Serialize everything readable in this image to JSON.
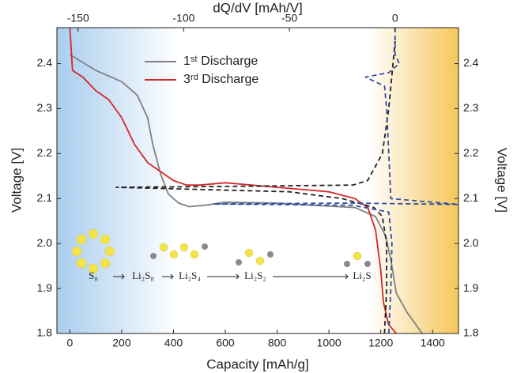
{
  "chart_data": {
    "type": "line",
    "xlabel": "Capacity [mAh/g]",
    "x2label": "dQ/dV [mAh/V]",
    "ylabel": "Voltage [V]",
    "y2label": "Voltage [V]",
    "xlim": [
      -50,
      1500
    ],
    "xticks": [
      0,
      200,
      400,
      600,
      800,
      1000,
      1200,
      1400
    ],
    "x2lim": [
      -160,
      30
    ],
    "x2ticks": [
      -150,
      -100,
      -50,
      0
    ],
    "ylim": [
      1.8,
      2.48
    ],
    "yticks": [
      1.8,
      1.9,
      {
        "value": 2,
        "label": "2.0"
      },
      2.1,
      2.2,
      2.3,
      2.4
    ],
    "y2lim": [
      1.8,
      2.48
    ],
    "y2ticks": [
      1.8,
      1.9,
      {
        "value": 2,
        "label": "2.0"
      },
      2.1,
      2.2,
      2.3,
      2.4
    ],
    "series": [
      {
        "name": "1ˢᵗ Discharge",
        "color": "#808080",
        "dash": false,
        "x": [
          0,
          100,
          200,
          260,
          300,
          320,
          350,
          380,
          420,
          460,
          520,
          600,
          800,
          1000,
          1100,
          1180,
          1220,
          1240,
          1260,
          1300,
          1360
        ],
        "values": [
          2.42,
          2.385,
          2.36,
          2.33,
          2.28,
          2.22,
          2.155,
          2.11,
          2.09,
          2.082,
          2.085,
          2.092,
          2.09,
          2.083,
          2.08,
          2.06,
          2.015,
          1.96,
          1.89,
          1.848,
          1.8
        ]
      },
      {
        "name": "3ʳᵈ Discharge",
        "color": "#d62728",
        "dash": false,
        "x": [
          0,
          10,
          50,
          100,
          150,
          200,
          250,
          300,
          350,
          400,
          450,
          500,
          600,
          800,
          1000,
          1100,
          1150,
          1180,
          1200,
          1210,
          1230,
          1260
        ],
        "values": [
          2.48,
          2.385,
          2.37,
          2.34,
          2.32,
          2.28,
          2.22,
          2.18,
          2.16,
          2.14,
          2.13,
          2.13,
          2.135,
          2.125,
          2.115,
          2.1,
          2.08,
          2.03,
          1.94,
          1.87,
          1.82,
          1.8
        ]
      },
      {
        "color": "#222222",
        "dash": true,
        "axis": "x2",
        "x": [
          -5,
          -4,
          -4,
          -6,
          -10,
          -25,
          -50,
          -132,
          -80,
          -20,
          -13,
          -6,
          -3,
          0
        ],
        "values": [
          1.8,
          1.9,
          2.0,
          2.06,
          2.08,
          2.1,
          2.115,
          2.125,
          2.127,
          2.13,
          2.14,
          2.2,
          2.3,
          2.45
        ]
      },
      {
        "color": "#2e4fa0",
        "dash": true,
        "axis": "x2",
        "x": [
          -3,
          -2,
          -1.5,
          -3,
          -20,
          -86,
          -20,
          30,
          -2,
          -3,
          -4,
          -5,
          -14,
          -3,
          2,
          0,
          0
        ],
        "values": [
          1.8,
          1.9,
          2.0,
          2.07,
          2.085,
          2.088,
          2.09,
          2.087,
          2.1,
          2.2,
          2.3,
          2.35,
          2.37,
          2.38,
          2.4,
          2.42,
          2.48
        ]
      }
    ],
    "annotations": [
      "S₈",
      "Li₂S₈",
      "Li₂S₄",
      "Li₂S₂",
      "Li₂S"
    ]
  }
}
